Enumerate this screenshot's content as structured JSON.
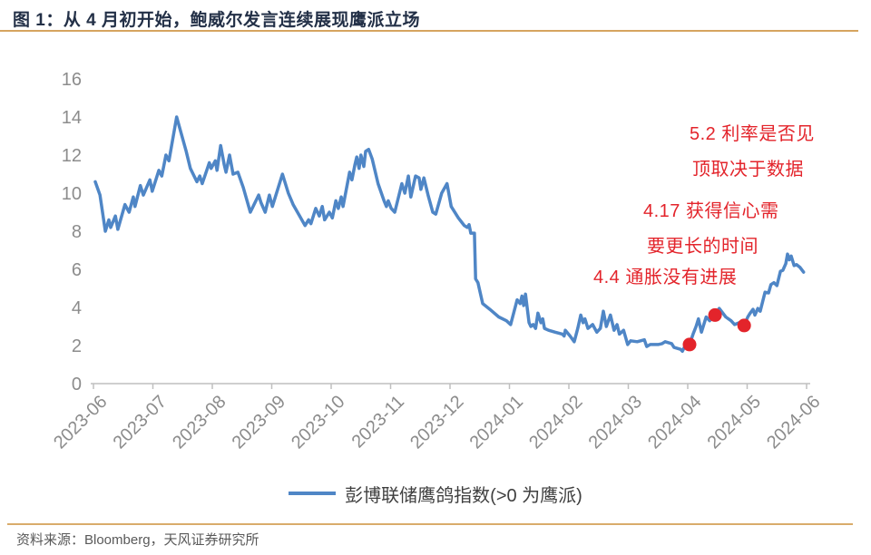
{
  "colors": {
    "line": "#4F86C6",
    "marker": "#E3242B",
    "annotation_text": "#E3242B",
    "title_text": "#233047",
    "accent_rule": "#D6A45F",
    "axis": "#BFBFBF",
    "tick_label": "#8C8C8C",
    "legend_text": "#3F3F3F",
    "source_text": "#595959",
    "background": "#FFFFFF"
  },
  "source": {
    "text": "资料来源：Bloomberg，天风证券研究所"
  },
  "chart_data": {
    "type": "line",
    "title": "图 1：从 4 月初开始，鲍威尔发言连续展现鹰派立场",
    "xlabel": "",
    "ylabel": "",
    "ylim": [
      0,
      16
    ],
    "y_tick_values": [
      0,
      2,
      4,
      6,
      8,
      10,
      12,
      14,
      16
    ],
    "x_tick_labels": [
      "2023-06",
      "2023-07",
      "2023-08",
      "2023-09",
      "2023-10",
      "2023-11",
      "2023-12",
      "2024-01",
      "2024-02",
      "2024-03",
      "2024-04",
      "2024-05",
      "2024-06"
    ],
    "grid": false,
    "legend_position": "bottom-center",
    "series": [
      {
        "name": "彭博联储鹰鸽指数(>0 为鹰派)",
        "color": "#4F86C6",
        "points": [
          [
            0.03,
            10.6
          ],
          [
            0.11,
            9.9
          ],
          [
            0.2,
            8.0
          ],
          [
            0.26,
            8.6
          ],
          [
            0.29,
            8.2
          ],
          [
            0.37,
            8.8
          ],
          [
            0.41,
            8.1
          ],
          [
            0.53,
            9.4
          ],
          [
            0.6,
            9.0
          ],
          [
            0.67,
            9.8
          ],
          [
            0.7,
            9.3
          ],
          [
            0.79,
            10.4
          ],
          [
            0.84,
            9.9
          ],
          [
            0.95,
            10.7
          ],
          [
            0.99,
            10.1
          ],
          [
            1.1,
            11.2
          ],
          [
            1.15,
            10.9
          ],
          [
            1.22,
            12.0
          ],
          [
            1.27,
            11.7
          ],
          [
            1.4,
            14.0
          ],
          [
            1.56,
            12.2
          ],
          [
            1.63,
            11.3
          ],
          [
            1.74,
            10.6
          ],
          [
            1.79,
            10.9
          ],
          [
            1.83,
            10.5
          ],
          [
            1.95,
            11.6
          ],
          [
            1.98,
            11.3
          ],
          [
            2.05,
            11.7
          ],
          [
            2.08,
            11.2
          ],
          [
            2.14,
            12.5
          ],
          [
            2.2,
            11.5
          ],
          [
            2.23,
            11.1
          ],
          [
            2.29,
            12.0
          ],
          [
            2.35,
            11.0
          ],
          [
            2.43,
            11.1
          ],
          [
            2.52,
            10.3
          ],
          [
            2.64,
            9.0
          ],
          [
            2.78,
            9.9
          ],
          [
            2.82,
            9.5
          ],
          [
            2.89,
            9.0
          ],
          [
            2.96,
            9.9
          ],
          [
            3.01,
            9.3
          ],
          [
            3.18,
            11.0
          ],
          [
            3.28,
            10.0
          ],
          [
            3.36,
            9.4
          ],
          [
            3.47,
            8.8
          ],
          [
            3.56,
            8.3
          ],
          [
            3.62,
            8.6
          ],
          [
            3.66,
            8.4
          ],
          [
            3.74,
            9.2
          ],
          [
            3.8,
            8.8
          ],
          [
            3.85,
            9.3
          ],
          [
            3.89,
            8.6
          ],
          [
            3.97,
            9.0
          ],
          [
            4.02,
            8.7
          ],
          [
            4.08,
            9.6
          ],
          [
            4.12,
            9.2
          ],
          [
            4.17,
            9.8
          ],
          [
            4.2,
            9.3
          ],
          [
            4.31,
            11.1
          ],
          [
            4.35,
            10.7
          ],
          [
            4.4,
            11.5
          ],
          [
            4.43,
            11.9
          ],
          [
            4.47,
            11.3
          ],
          [
            4.5,
            12.0
          ],
          [
            4.55,
            11.4
          ],
          [
            4.58,
            12.2
          ],
          [
            4.63,
            12.3
          ],
          [
            4.69,
            11.8
          ],
          [
            4.79,
            10.5
          ],
          [
            4.89,
            9.6
          ],
          [
            4.93,
            9.3
          ],
          [
            4.96,
            9.6
          ],
          [
            5.01,
            9.2
          ],
          [
            5.07,
            9.0
          ],
          [
            5.19,
            10.5
          ],
          [
            5.24,
            10.0
          ],
          [
            5.3,
            10.9
          ],
          [
            5.34,
            9.8
          ],
          [
            5.42,
            10.9
          ],
          [
            5.48,
            10.8
          ],
          [
            5.51,
            10.2
          ],
          [
            5.56,
            10.8
          ],
          [
            5.63,
            9.9
          ],
          [
            5.71,
            9.0
          ],
          [
            5.76,
            8.9
          ],
          [
            5.86,
            10.0
          ],
          [
            5.95,
            10.5
          ],
          [
            6.02,
            9.3
          ],
          [
            6.14,
            8.7
          ],
          [
            6.24,
            8.3
          ],
          [
            6.29,
            8.2
          ],
          [
            6.32,
            8.35
          ],
          [
            6.35,
            7.9
          ],
          [
            6.41,
            7.9
          ],
          [
            6.43,
            5.5
          ],
          [
            6.47,
            5.3
          ],
          [
            6.55,
            4.2
          ],
          [
            6.67,
            3.9
          ],
          [
            6.82,
            3.5
          ],
          [
            6.95,
            3.3
          ],
          [
            7.02,
            3.1
          ],
          [
            7.13,
            4.4
          ],
          [
            7.18,
            4.2
          ],
          [
            7.21,
            4.6
          ],
          [
            7.24,
            4.1
          ],
          [
            7.27,
            4.7
          ],
          [
            7.33,
            3.2
          ],
          [
            7.36,
            3.0
          ],
          [
            7.4,
            3.1
          ],
          [
            7.44,
            2.9
          ],
          [
            7.48,
            3.7
          ],
          [
            7.53,
            3.2
          ],
          [
            7.56,
            3.4
          ],
          [
            7.59,
            2.9
          ],
          [
            7.66,
            2.8
          ],
          [
            7.77,
            2.7
          ],
          [
            7.89,
            2.6
          ],
          [
            7.92,
            2.5
          ],
          [
            7.94,
            2.8
          ],
          [
            8.02,
            2.5
          ],
          [
            8.09,
            2.2
          ],
          [
            8.15,
            2.9
          ],
          [
            8.2,
            3.6
          ],
          [
            8.24,
            3.2
          ],
          [
            8.27,
            3.4
          ],
          [
            8.32,
            2.9
          ],
          [
            8.4,
            3.1
          ],
          [
            8.47,
            2.7
          ],
          [
            8.53,
            2.9
          ],
          [
            8.58,
            3.8
          ],
          [
            8.63,
            3.0
          ],
          [
            8.7,
            3.6
          ],
          [
            8.76,
            2.8
          ],
          [
            8.81,
            3.1
          ],
          [
            8.85,
            2.6
          ],
          [
            8.92,
            2.8
          ],
          [
            8.99,
            2.05
          ],
          [
            9.04,
            2.25
          ],
          [
            9.15,
            2.2
          ],
          [
            9.27,
            2.3
          ],
          [
            9.31,
            1.95
          ],
          [
            9.37,
            2.05
          ],
          [
            9.5,
            2.05
          ],
          [
            9.57,
            2.1
          ],
          [
            9.62,
            2.2
          ],
          [
            9.73,
            2.1
          ],
          [
            9.77,
            1.9
          ],
          [
            9.88,
            1.8
          ],
          [
            9.91,
            1.7
          ],
          [
            9.95,
            1.95
          ],
          [
            10.03,
            2.05
          ],
          [
            10.09,
            2.6
          ],
          [
            10.14,
            3.0
          ],
          [
            10.18,
            3.4
          ],
          [
            10.23,
            2.7
          ],
          [
            10.31,
            3.5
          ],
          [
            10.37,
            3.3
          ],
          [
            10.41,
            3.5
          ],
          [
            10.46,
            3.6
          ],
          [
            10.53,
            3.95
          ],
          [
            10.64,
            3.5
          ],
          [
            10.73,
            3.3
          ],
          [
            10.79,
            3.1
          ],
          [
            10.87,
            3.2
          ],
          [
            10.95,
            3.05
          ],
          [
            11.01,
            3.5
          ],
          [
            11.05,
            3.7
          ],
          [
            11.1,
            3.9
          ],
          [
            11.13,
            3.6
          ],
          [
            11.18,
            3.95
          ],
          [
            11.22,
            3.8
          ],
          [
            11.3,
            4.8
          ],
          [
            11.36,
            4.76
          ],
          [
            11.4,
            5.2
          ],
          [
            11.45,
            5.3
          ],
          [
            11.5,
            5.15
          ],
          [
            11.56,
            5.9
          ],
          [
            11.6,
            5.95
          ],
          [
            11.65,
            6.3
          ],
          [
            11.68,
            6.8
          ],
          [
            11.71,
            6.5
          ],
          [
            11.74,
            6.7
          ],
          [
            11.79,
            6.2
          ],
          [
            11.83,
            6.25
          ],
          [
            11.89,
            6.1
          ],
          [
            11.95,
            5.85
          ]
        ]
      }
    ],
    "markers": [
      {
        "date": "4.4",
        "x": 10.03,
        "y": 2.05
      },
      {
        "date": "4.17",
        "x": 10.46,
        "y": 3.6
      },
      {
        "date": "5.2",
        "x": 10.95,
        "y": 3.05
      }
    ],
    "annotations": [
      {
        "date": "5.2",
        "lines": [
          "5.2  利率是否见",
          "顶取决于数据"
        ]
      },
      {
        "date": "4.17",
        "lines": [
          "4.17  获得信心需",
          "要更长的时间"
        ]
      },
      {
        "date": "4.4",
        "lines": [
          "4.4 通胀没有进展"
        ]
      }
    ]
  }
}
